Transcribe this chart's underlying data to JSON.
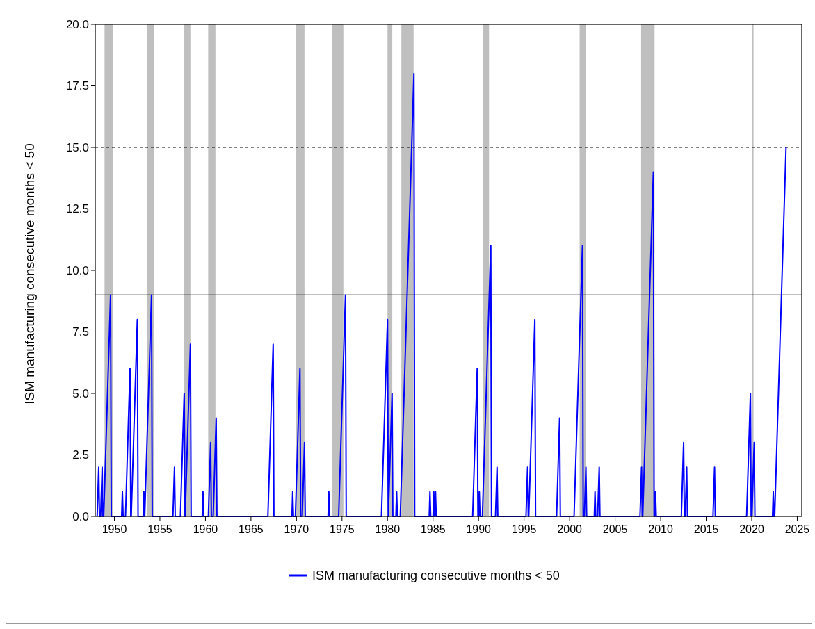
{
  "chart_data": {
    "type": "line",
    "ylabel": "ISM manufacturing consecutive months < 50",
    "xlim": [
      1947.9,
      2025.5
    ],
    "ylim": [
      0,
      20
    ],
    "xticks": [
      1950,
      1955,
      1960,
      1965,
      1970,
      1975,
      1980,
      1985,
      1990,
      1995,
      2000,
      2005,
      2010,
      2015,
      2020,
      2025
    ],
    "yticks": [
      {
        "value": 0,
        "label": "0.0"
      },
      {
        "value": 2.5,
        "label": "2.5"
      },
      {
        "value": 5,
        "label": "5.0"
      },
      {
        "value": 7.5,
        "label": "7.5"
      },
      {
        "value": 10,
        "label": "10.0"
      },
      {
        "value": 12.5,
        "label": "12.5"
      },
      {
        "value": 15,
        "label": "15.0"
      },
      {
        "value": 17.5,
        "label": "17.5"
      },
      {
        "value": 20,
        "label": "20.0"
      }
    ],
    "series": [
      {
        "name": "ISM manufacturing consecutive months < 50",
        "color": "#0000ff",
        "x": [
          1948.11,
          1948.28,
          1948.36,
          1948.49,
          1948.66,
          1948.74,
          1948.83,
          1949.58,
          1949.66,
          1950.8,
          1950.88,
          1950.96,
          1951.22,
          1951.72,
          1951.8,
          1951.85,
          1952.52,
          1952.6,
          1953.16,
          1953.24,
          1953.32,
          1953.33,
          1954.08,
          1954.16,
          1956.43,
          1956.6,
          1956.68,
          1957.25,
          1957.67,
          1957.75,
          1957.77,
          1958.35,
          1958.43,
          1959.65,
          1959.73,
          1959.81,
          1960.32,
          1960.57,
          1960.65,
          1960.85,
          1961.18,
          1961.26,
          1966.86,
          1967.44,
          1967.52,
          1969.5,
          1969.58,
          1969.66,
          1969.88,
          1970.38,
          1970.46,
          1970.63,
          1970.88,
          1970.96,
          1973.47,
          1973.55,
          1973.63,
          1974.63,
          1975.38,
          1975.46,
          1979.33,
          1980.0,
          1980.08,
          1980.5,
          1980.58,
          1980.92,
          1981.0,
          1981.08,
          1981.4,
          1982.9,
          1982.98,
          1984.58,
          1984.66,
          1984.74,
          1985.0,
          1985.08,
          1985.16,
          1985.19,
          1985.27,
          1985.35,
          1989.35,
          1989.85,
          1989.93,
          1990.0,
          1990.08,
          1990.16,
          1990.42,
          1991.34,
          1991.42,
          1991.86,
          1992.03,
          1992.11,
          1995.21,
          1995.38,
          1995.46,
          1995.51,
          1996.18,
          1996.26,
          1998.57,
          1998.9,
          1998.98,
          2000.49,
          2001.41,
          2001.49,
          2001.62,
          2001.79,
          2001.87,
          2002.71,
          2002.79,
          2002.87,
          2003.08,
          2003.25,
          2003.33,
          2007.73,
          2007.9,
          2007.98,
          2008.03,
          2009.2,
          2009.28,
          2009.35,
          2009.43,
          2009.51,
          2012.27,
          2012.52,
          2012.6,
          2012.69,
          2012.86,
          2012.94,
          2015.75,
          2015.92,
          2016.0,
          2019.44,
          2019.86,
          2019.94,
          2020.02,
          2020.27,
          2020.35,
          2022.29,
          2022.37,
          2022.45,
          2022.52,
          2023.77
        ],
        "values": [
          0,
          2,
          0,
          0,
          2,
          0,
          0,
          9,
          0,
          0,
          1,
          0,
          0,
          6,
          0,
          0,
          8,
          0,
          0,
          1,
          0,
          0,
          9,
          0,
          0,
          2,
          0,
          0,
          5,
          0,
          0,
          7,
          0,
          0,
          1,
          0,
          0,
          3,
          0,
          0,
          4,
          0,
          0,
          7,
          0,
          0,
          1,
          0,
          0,
          6,
          0,
          0,
          3,
          0,
          0,
          1,
          0,
          0,
          9,
          0,
          0,
          8,
          0,
          5,
          0,
          0,
          1,
          0,
          0,
          18,
          0,
          0,
          1,
          0,
          0,
          1,
          0,
          0,
          1,
          0,
          0,
          6,
          0,
          0,
          1,
          0,
          0,
          11,
          0,
          0,
          2,
          0,
          0,
          2,
          0,
          0,
          8,
          0,
          0,
          4,
          0,
          0,
          11,
          0,
          0,
          2,
          0,
          0,
          1,
          0,
          0,
          2,
          0,
          0,
          2,
          0,
          0,
          14,
          0,
          0,
          1,
          0,
          0,
          3,
          0,
          0,
          2,
          0,
          0,
          2,
          0,
          0,
          5,
          0,
          0,
          3,
          0,
          0,
          1,
          0,
          0,
          15
        ]
      }
    ],
    "ref_lines": [
      {
        "axis": "y",
        "value": 9,
        "color": "#000000",
        "line_style": "solid"
      },
      {
        "axis": "y",
        "value": 15,
        "color": "#000000",
        "line_style": "dashed"
      }
    ],
    "bands": [
      {
        "axis": "x",
        "from": 1948.92,
        "to": 1949.81,
        "color": "#bfbfbf"
      },
      {
        "axis": "x",
        "from": 1953.55,
        "to": 1954.39,
        "color": "#bfbfbf"
      },
      {
        "axis": "x",
        "from": 1957.67,
        "to": 1958.35,
        "color": "#bfbfbf"
      },
      {
        "axis": "x",
        "from": 1960.3,
        "to": 1961.1,
        "color": "#bfbfbf"
      },
      {
        "axis": "x",
        "from": 1969.96,
        "to": 1970.88,
        "color": "#bfbfbf"
      },
      {
        "axis": "x",
        "from": 1973.89,
        "to": 1975.15,
        "color": "#bfbfbf"
      },
      {
        "axis": "x",
        "from": 1980.0,
        "to": 1980.52,
        "color": "#bfbfbf"
      },
      {
        "axis": "x",
        "from": 1981.52,
        "to": 1982.86,
        "color": "#bfbfbf"
      },
      {
        "axis": "x",
        "from": 1990.5,
        "to": 1991.15,
        "color": "#bfbfbf"
      },
      {
        "axis": "x",
        "from": 2001.1,
        "to": 2001.77,
        "color": "#bfbfbf"
      },
      {
        "axis": "x",
        "from": 2007.85,
        "to": 2009.33,
        "color": "#bfbfbf"
      },
      {
        "axis": "x",
        "from": 2020.0,
        "to": 2020.2,
        "color": "#bfbfbf"
      }
    ],
    "legend": "bottom",
    "grid": false
  }
}
